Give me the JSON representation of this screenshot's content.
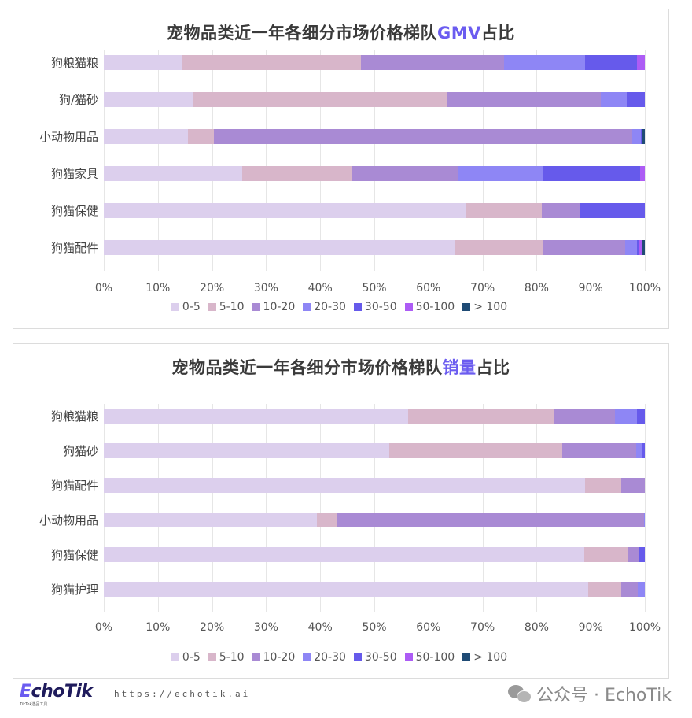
{
  "chart_data": [
    {
      "type": "bar",
      "orientation": "horizontal",
      "stacked": "percent",
      "title": "宠物品类近一年各细分市场价格梯队GMV占比",
      "title_parts": {
        "prefix": "宠物品类近一年各细分市场价格梯队",
        "highlight": "GMV",
        "suffix": "占比"
      },
      "categories": [
        "狗粮猫粮",
        "狗/猫砂",
        "小动物用品",
        "狗猫家具",
        "狗猫保健",
        "狗猫配件"
      ],
      "series": [
        {
          "name": "0-5",
          "color": "#dccfed",
          "values": [
            14.5,
            16.5,
            15.5,
            25.6,
            66.8,
            65.0
          ]
        },
        {
          "name": "5-10",
          "color": "#d8b6ca",
          "values": [
            33.0,
            47.0,
            4.8,
            20.2,
            14.1,
            16.2
          ]
        },
        {
          "name": "10-20",
          "color": "#a98ad4",
          "values": [
            26.5,
            28.3,
            77.4,
            19.8,
            7.0,
            15.2
          ]
        },
        {
          "name": "20-30",
          "color": "#8e86f5",
          "values": [
            15.0,
            4.8,
            1.6,
            15.5,
            0.0,
            2.1
          ]
        },
        {
          "name": "30-50",
          "color": "#665aeb",
          "values": [
            9.5,
            3.4,
            0.3,
            18.0,
            12.1,
            0.5
          ]
        },
        {
          "name": "50-100",
          "color": "#ad5cf5",
          "values": [
            1.5,
            0.0,
            0.0,
            0.9,
            0.0,
            0.5
          ]
        },
        {
          "name": "> 100",
          "color": "#1f4b75",
          "values": [
            0.0,
            0.0,
            0.4,
            0.0,
            0.0,
            0.5
          ]
        }
      ],
      "xlabel": "",
      "ylabel": "",
      "xlim": [
        0,
        100
      ],
      "x_ticks": [
        "0%",
        "10%",
        "20%",
        "30%",
        "40%",
        "50%",
        "60%",
        "70%",
        "80%",
        "90%",
        "100%"
      ],
      "grid": true,
      "legend_position": "bottom"
    },
    {
      "type": "bar",
      "orientation": "horizontal",
      "stacked": "percent",
      "title": "宠物品类近一年各细分市场价格梯队销量占比",
      "title_parts": {
        "prefix": "宠物品类近一年各细分市场价格梯队",
        "highlight": "销量",
        "suffix": "占比"
      },
      "categories": [
        "狗粮猫粮",
        "狗猫砂",
        "狗猫配件",
        "小动物用品",
        "狗猫保健",
        "狗猫护理"
      ],
      "series": [
        {
          "name": "0-5",
          "color": "#dccfed",
          "values": [
            56.2,
            52.8,
            89.0,
            39.4,
            88.8,
            89.5
          ]
        },
        {
          "name": "5-10",
          "color": "#d8b6ca",
          "values": [
            27.1,
            32.0,
            6.7,
            3.6,
            8.1,
            6.1
          ]
        },
        {
          "name": "10-20",
          "color": "#a98ad4",
          "values": [
            11.2,
            13.6,
            4.3,
            56.8,
            2.1,
            3.1
          ]
        },
        {
          "name": "20-30",
          "color": "#8e86f5",
          "values": [
            4.0,
            1.2,
            0.0,
            0.2,
            0.0,
            1.3
          ]
        },
        {
          "name": "30-50",
          "color": "#665aeb",
          "values": [
            1.5,
            0.4,
            0.0,
            0.0,
            1.0,
            0.0
          ]
        },
        {
          "name": "50-100",
          "color": "#ad5cf5",
          "values": [
            0.0,
            0.0,
            0.0,
            0.0,
            0.0,
            0.0
          ]
        },
        {
          "name": "> 100",
          "color": "#1f4b75",
          "values": [
            0.0,
            0.0,
            0.0,
            0.0,
            0.0,
            0.0
          ]
        }
      ],
      "xlabel": "",
      "ylabel": "",
      "xlim": [
        0,
        100
      ],
      "x_ticks": [
        "0%",
        "10%",
        "20%",
        "30%",
        "40%",
        "50%",
        "60%",
        "70%",
        "80%",
        "90%",
        "100%"
      ],
      "grid": true,
      "legend_position": "bottom"
    }
  ],
  "footer": {
    "logo_e": "E",
    "logo_rest": "choTik",
    "logo_sub": "TikTok选品工具",
    "url": "https://echotik.ai",
    "wechat_label": "公众号 · EchoTik"
  }
}
